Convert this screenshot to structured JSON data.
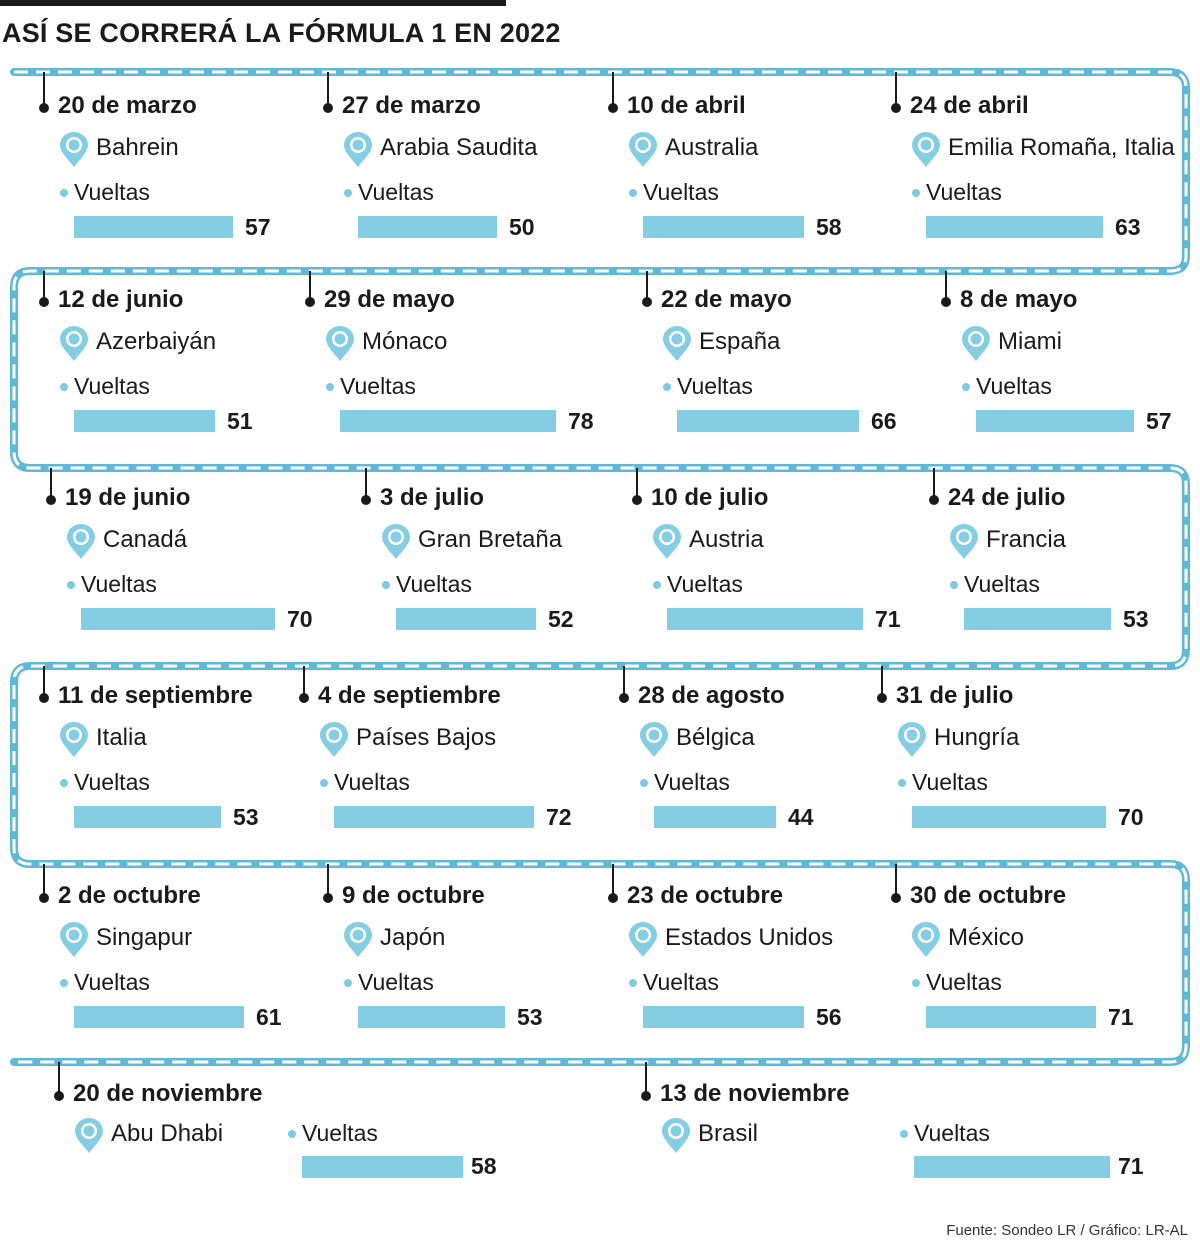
{
  "header": {
    "title": "ASÍ SE CORRERÁ LA FÓRMULA 1 EN 2022"
  },
  "source": "Fuente: Sondeo LR / Gráfico: LR-AL",
  "colors": {
    "track": "#8fd0e6",
    "bar": "#85cde3",
    "text": "#1a1a1a"
  },
  "icons": {
    "location": "location-pin-icon"
  },
  "chart_data": {
    "type": "bar",
    "title": "ASÍ SE CORRERÁ LA FÓRMULA 1 EN 2022",
    "value_label": "Vueltas",
    "races": [
      {
        "date": "20 de marzo",
        "place": "Bahrein",
        "laps": 57
      },
      {
        "date": "27 de marzo",
        "place": "Arabia Saudita",
        "laps": 50
      },
      {
        "date": "10 de abril",
        "place": "Australia",
        "laps": 58
      },
      {
        "date": "24 de abril",
        "place": "Emilia Romaña, Italia",
        "laps": 63
      },
      {
        "date": "12 de junio",
        "place": "Azerbaiyán",
        "laps": 51
      },
      {
        "date": "29 de mayo",
        "place": "Mónaco",
        "laps": 78
      },
      {
        "date": "22 de mayo",
        "place": "España",
        "laps": 66
      },
      {
        "date": "8 de mayo",
        "place": "Miami",
        "laps": 57
      },
      {
        "date": "19 de junio",
        "place": "Canadá",
        "laps": 70
      },
      {
        "date": "3 de julio",
        "place": "Gran Bretaña",
        "laps": 52
      },
      {
        "date": "10 de julio",
        "place": "Austria",
        "laps": 71
      },
      {
        "date": "24 de julio",
        "place": "Francia",
        "laps": 53
      },
      {
        "date": "11 de septiembre",
        "place": "Italia",
        "laps": 53
      },
      {
        "date": "4 de septiembre",
        "place": "Países Bajos",
        "laps": 72
      },
      {
        "date": "28 de agosto",
        "place": "Bélgica",
        "laps": 44
      },
      {
        "date": "31 de julio",
        "place": "Hungría",
        "laps": 70
      },
      {
        "date": "2 de octubre",
        "place": "Singapur",
        "laps": 61
      },
      {
        "date": "9 de octubre",
        "place": "Japón",
        "laps": 53
      },
      {
        "date": "23 de octubre",
        "place": "Estados Unidos",
        "laps": 56
      },
      {
        "date": "30 de octubre",
        "place": "México",
        "laps": 71
      },
      {
        "date": "20 de noviembre",
        "place": "Abu Dhabi",
        "laps": 58
      },
      {
        "date": "13 de noviembre",
        "place": "Brasil",
        "laps": 71
      }
    ]
  }
}
